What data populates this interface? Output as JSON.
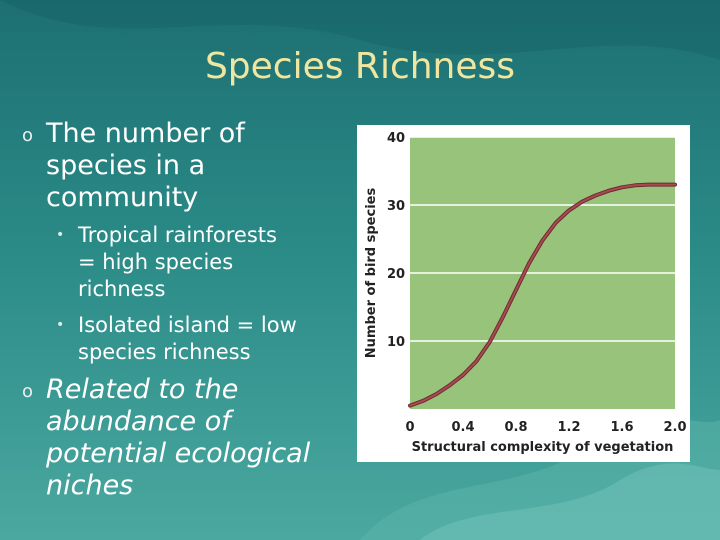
{
  "slide": {
    "title": "Species Richness",
    "bullets": [
      {
        "text_lines": [
          "The number of",
          "species in a",
          "community"
        ],
        "sub": [
          {
            "text_lines": [
              "Tropical rainforests",
              "= high species",
              "richness"
            ]
          },
          {
            "text_lines": [
              "Isolated island = low",
              "species richness"
            ]
          }
        ]
      },
      {
        "text_lines": [
          "Related to the",
          "abundance of",
          "potential ecological",
          "niches"
        ]
      }
    ]
  },
  "chart_data": {
    "type": "line",
    "title": "",
    "xlabel": "Structural complexity of vegetation",
    "ylabel": "Number of bird species",
    "xlim": [
      0,
      2.0
    ],
    "ylim": [
      0,
      40
    ],
    "x_ticks": [
      "0",
      "0.4",
      "0.8",
      "1.2",
      "1.6",
      "2.0"
    ],
    "y_ticks": [
      "10",
      "20",
      "30",
      "40"
    ],
    "grid": true,
    "plot_bg": "#97c47a",
    "line_color": "#a84a52",
    "series": [
      {
        "x": [
          0,
          0.1,
          0.2,
          0.3,
          0.4,
          0.5,
          0.6,
          0.7,
          0.8,
          0.9,
          1.0,
          1.1,
          1.2,
          1.3,
          1.4,
          1.5,
          1.6,
          1.7,
          1.8,
          1.9,
          2.0
        ],
        "values": [
          0.5,
          1.2,
          2.2,
          3.5,
          5.0,
          7.0,
          9.8,
          13.5,
          17.5,
          21.5,
          24.8,
          27.4,
          29.2,
          30.5,
          31.4,
          32.1,
          32.6,
          32.9,
          33.0,
          33.0,
          33.0
        ]
      }
    ]
  }
}
